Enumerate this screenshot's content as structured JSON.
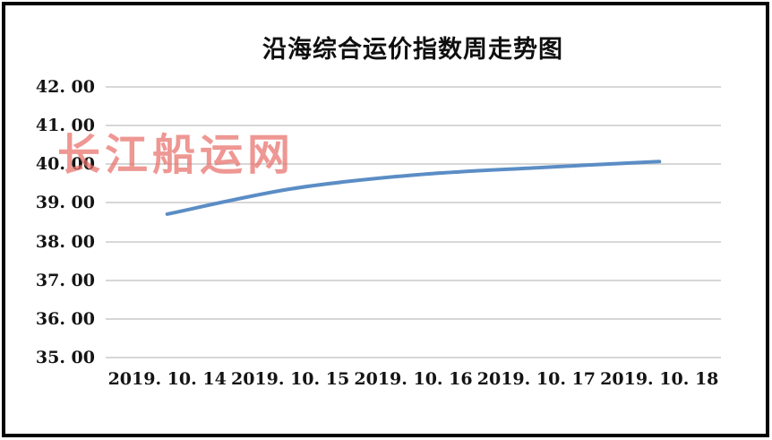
{
  "watermark": {
    "text": "长江船运网",
    "color": "#e8706a"
  },
  "frame": {
    "border_color": "#060606",
    "background": "#ffffff"
  },
  "chart_data": {
    "type": "line",
    "title": "沿海综合运价指数周走势图",
    "categories": [
      "2019.10.14",
      "2019.10.15",
      "2019.10.16",
      "2019.10.17",
      "2019.10.18"
    ],
    "xtick_labels": [
      "2019. 10. 14",
      "2019. 10. 15",
      "2019. 10. 16",
      "2019. 10. 17",
      "2019. 10. 18"
    ],
    "values": [
      38.71,
      39.36,
      39.72,
      39.91,
      40.07
    ],
    "ylim": [
      35.0,
      42.0
    ],
    "ytick_step": 1.0,
    "ytick_labels": [
      "42. 00",
      "41. 00",
      "40. 00",
      "39. 00",
      "38. 00",
      "37. 00",
      "36. 00",
      "35. 00"
    ],
    "xlabel": "",
    "ylabel": "",
    "grid": true,
    "gridline_color": "#d7d7d7",
    "line_color": "#5b8dc5",
    "line_width": 4,
    "line_smooth": true,
    "markers": false,
    "legend_position": "none"
  }
}
